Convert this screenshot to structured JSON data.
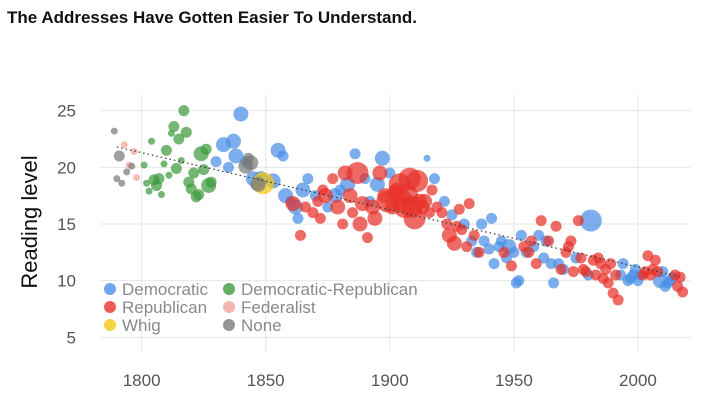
{
  "title": "The Addresses Have Gotten Easier To Understand.",
  "colors": {
    "Democratic": "#4a8fe8",
    "Democratic-Republican": "#3f9a3f",
    "Republican": "#e8322a",
    "Federalist": "#f0a39a",
    "Whig": "#f2c811",
    "None": "#7a7a7a"
  },
  "chart_data": {
    "type": "scatter",
    "title": "The Addresses Have Gotten Easier To Understand.",
    "xlabel": "",
    "ylabel": "Reading level",
    "xlim": [
      1780,
      2025
    ],
    "ylim": [
      3,
      27
    ],
    "xticks": [
      1800,
      1850,
      1900,
      1950,
      2000
    ],
    "yticks": [
      5,
      10,
      15,
      20,
      25
    ],
    "grid": true,
    "legend": "bottom-left",
    "trendline": {
      "style": "dotted",
      "from": [
        1790,
        21.8
      ],
      "to": [
        2018,
        10.3
      ]
    },
    "series": [
      {
        "name": "Democratic",
        "points": [
          [
            1830,
            20.5,
            1
          ],
          [
            1833,
            22,
            2
          ],
          [
            1835,
            20,
            1
          ],
          [
            1837,
            22.3,
            2
          ],
          [
            1838,
            21,
            2
          ],
          [
            1840,
            24.7,
            2
          ],
          [
            1842,
            20.5,
            1
          ],
          [
            1845,
            19,
            2
          ],
          [
            1846,
            18.5,
            1
          ],
          [
            1848,
            19,
            2
          ],
          [
            1853,
            18.8,
            2
          ],
          [
            1855,
            21.5,
            2
          ],
          [
            1857,
            21,
            1
          ],
          [
            1858,
            17.5,
            2
          ],
          [
            1860,
            17,
            1
          ],
          [
            1862,
            16.5,
            2
          ],
          [
            1863,
            15.5,
            1
          ],
          [
            1865,
            18,
            2
          ],
          [
            1867,
            19,
            1
          ],
          [
            1870,
            17.5,
            1
          ],
          [
            1875,
            16.5,
            1
          ],
          [
            1878,
            17.5,
            2
          ],
          [
            1880,
            18,
            1
          ],
          [
            1883,
            18.5,
            2
          ],
          [
            1886,
            21.2,
            1
          ],
          [
            1890,
            19,
            1
          ],
          [
            1892,
            17,
            1
          ],
          [
            1895,
            18.5,
            2
          ],
          [
            1897,
            20.8,
            2
          ],
          [
            1900,
            19.5,
            1
          ],
          [
            1915,
            20.8,
            0
          ],
          [
            1918,
            19,
            1
          ],
          [
            1922,
            17,
            1
          ],
          [
            1925,
            15.8,
            1
          ],
          [
            1930,
            15,
            1
          ],
          [
            1933,
            13.5,
            1
          ],
          [
            1935,
            12.5,
            1
          ],
          [
            1937,
            15,
            1
          ],
          [
            1938,
            13.5,
            1
          ],
          [
            1940,
            12.8,
            1
          ],
          [
            1941,
            15.5,
            1
          ],
          [
            1942,
            11.5,
            1
          ],
          [
            1944,
            13,
            1
          ],
          [
            1945,
            13.5,
            1
          ],
          [
            1947,
            12,
            1
          ],
          [
            1948,
            13,
            2
          ],
          [
            1950,
            12.5,
            1
          ],
          [
            1951,
            9.8,
            1
          ],
          [
            1952,
            10,
            1
          ],
          [
            1953,
            14,
            1
          ],
          [
            1955,
            12.5,
            1
          ],
          [
            1958,
            13,
            1
          ],
          [
            1960,
            14,
            1
          ],
          [
            1962,
            12,
            1
          ],
          [
            1963,
            13.5,
            1
          ],
          [
            1965,
            11.5,
            1
          ],
          [
            1966,
            9.8,
            1
          ],
          [
            1968,
            11.5,
            1
          ],
          [
            1970,
            11,
            1
          ],
          [
            1975,
            12,
            1
          ],
          [
            1980,
            10.5,
            1
          ],
          [
            1981,
            15.3,
            3
          ],
          [
            1993,
            10.5,
            1
          ],
          [
            1994,
            11.5,
            1
          ],
          [
            1996,
            10,
            1
          ],
          [
            1997,
            10.2,
            1
          ],
          [
            1998,
            10.5,
            1
          ],
          [
            1999,
            11,
            1
          ],
          [
            2000,
            10,
            1
          ],
          [
            2001,
            10.5,
            1
          ],
          [
            2009,
            10,
            2
          ],
          [
            2010,
            10.8,
            1
          ],
          [
            2011,
            9.5,
            1
          ],
          [
            2012,
            9.8,
            1
          ],
          [
            2013,
            10,
            1
          ],
          [
            2014,
            10.3,
            1
          ]
        ]
      },
      {
        "name": "Democratic-Republican",
        "points": [
          [
            1801,
            20.2,
            0
          ],
          [
            1802,
            18.6,
            0
          ],
          [
            1803,
            17.9,
            0
          ],
          [
            1804,
            22.3,
            0
          ],
          [
            1805,
            18.9,
            1
          ],
          [
            1806,
            18.4,
            1
          ],
          [
            1807,
            19,
            1
          ],
          [
            1808,
            17.6,
            0
          ],
          [
            1809,
            20.3,
            0
          ],
          [
            1810,
            21.5,
            1
          ],
          [
            1811,
            19.3,
            0
          ],
          [
            1812,
            23,
            0
          ],
          [
            1813,
            23.6,
            1
          ],
          [
            1814,
            19.9,
            1
          ],
          [
            1815,
            22.5,
            1
          ],
          [
            1816,
            20.6,
            0
          ],
          [
            1817,
            25,
            1
          ],
          [
            1818,
            23.1,
            1
          ],
          [
            1819,
            18.7,
            1
          ],
          [
            1820,
            18.1,
            1
          ],
          [
            1821,
            19.5,
            1
          ],
          [
            1822,
            17.4,
            1
          ],
          [
            1823,
            17.6,
            1
          ],
          [
            1824,
            21.2,
            2
          ],
          [
            1825,
            19.8,
            1
          ],
          [
            1826,
            21.6,
            1
          ],
          [
            1827,
            18.4,
            2
          ],
          [
            1828,
            18.7,
            1
          ]
        ]
      },
      {
        "name": "Republican",
        "points": [
          [
            1861,
            16.8,
            2
          ],
          [
            1864,
            14,
            1
          ],
          [
            1866,
            16.5,
            1
          ],
          [
            1869,
            16,
            1
          ],
          [
            1871,
            17,
            1
          ],
          [
            1872,
            15.5,
            1
          ],
          [
            1873,
            18,
            1
          ],
          [
            1874,
            17.5,
            2
          ],
          [
            1877,
            19,
            1
          ],
          [
            1879,
            16.5,
            2
          ],
          [
            1881,
            15,
            1
          ],
          [
            1882,
            19.5,
            2
          ],
          [
            1884,
            17.5,
            2
          ],
          [
            1885,
            16,
            1
          ],
          [
            1887,
            19.5,
            3
          ],
          [
            1888,
            15,
            2
          ],
          [
            1889,
            16.8,
            2
          ],
          [
            1891,
            13.8,
            1
          ],
          [
            1893,
            16.5,
            2
          ],
          [
            1894,
            15.5,
            2
          ],
          [
            1896,
            19.5,
            2
          ],
          [
            1898,
            17.5,
            2
          ],
          [
            1899,
            17,
            3
          ],
          [
            1901,
            16.5,
            2
          ],
          [
            1902,
            17.8,
            2
          ],
          [
            1903,
            18,
            2
          ],
          [
            1904,
            18.5,
            3
          ],
          [
            1905,
            17,
            3
          ],
          [
            1906,
            16.5,
            3
          ],
          [
            1907,
            17.5,
            3
          ],
          [
            1908,
            19,
            3
          ],
          [
            1909,
            16.5,
            3
          ],
          [
            1910,
            15.5,
            3
          ],
          [
            1911,
            18.8,
            3
          ],
          [
            1912,
            17,
            2
          ],
          [
            1913,
            16.5,
            2
          ],
          [
            1914,
            17,
            2
          ],
          [
            1916,
            16,
            1
          ],
          [
            1917,
            18,
            1
          ],
          [
            1919,
            16.5,
            1
          ],
          [
            1921,
            16,
            1
          ],
          [
            1923,
            15,
            1
          ],
          [
            1924,
            14,
            2
          ],
          [
            1926,
            13.3,
            2
          ],
          [
            1927,
            14.8,
            1
          ],
          [
            1928,
            16.3,
            1
          ],
          [
            1929,
            14.5,
            1
          ],
          [
            1931,
            13,
            1
          ],
          [
            1932,
            16.8,
            1
          ],
          [
            1934,
            14,
            1
          ],
          [
            1936,
            12.5,
            1
          ],
          [
            1946,
            12.5,
            1
          ],
          [
            1949,
            11.3,
            1
          ],
          [
            1954,
            13,
            1
          ],
          [
            1956,
            12.5,
            1
          ],
          [
            1957,
            13.5,
            1
          ],
          [
            1959,
            11.5,
            1
          ],
          [
            1961,
            15.3,
            1
          ],
          [
            1964,
            13.5,
            1
          ],
          [
            1967,
            14.8,
            1
          ],
          [
            1969,
            11,
            1
          ],
          [
            1971,
            12.5,
            1
          ],
          [
            1972,
            13,
            1
          ],
          [
            1973,
            13.5,
            1
          ],
          [
            1974,
            10.8,
            1
          ],
          [
            1976,
            15.3,
            1
          ],
          [
            1977,
            12,
            1
          ],
          [
            1978,
            11,
            1
          ],
          [
            1979,
            10.8,
            1
          ],
          [
            1982,
            11.8,
            1
          ],
          [
            1983,
            10.5,
            1
          ],
          [
            1984,
            12,
            1
          ],
          [
            1985,
            11.5,
            1
          ],
          [
            1986,
            10.2,
            1
          ],
          [
            1987,
            11,
            1
          ],
          [
            1988,
            9.8,
            1
          ],
          [
            1989,
            11.5,
            1
          ],
          [
            1990,
            8.9,
            1
          ],
          [
            1991,
            10.5,
            1
          ],
          [
            1992,
            8.3,
            1
          ],
          [
            2002,
            10.5,
            1
          ],
          [
            2003,
            10.8,
            1
          ],
          [
            2004,
            12.2,
            1
          ],
          [
            2005,
            10.5,
            1
          ],
          [
            2006,
            11,
            1
          ],
          [
            2007,
            11.8,
            1
          ],
          [
            2008,
            10.8,
            1
          ],
          [
            2015,
            10.5,
            1
          ],
          [
            2016,
            9.5,
            1
          ],
          [
            2017,
            10.3,
            1
          ],
          [
            2018,
            9,
            1
          ]
        ]
      },
      {
        "name": "Federalist",
        "points": [
          [
            1793,
            22,
            0
          ],
          [
            1795,
            20.2,
            0
          ],
          [
            1797,
            21.4,
            0
          ],
          [
            1798,
            19.1,
            0
          ]
        ]
      },
      {
        "name": "Whig",
        "points": [
          [
            1849,
            18.6,
            3
          ]
        ]
      },
      {
        "name": "None",
        "points": [
          [
            1789,
            23.2,
            0
          ],
          [
            1790,
            19,
            0
          ],
          [
            1791,
            21,
            1
          ],
          [
            1792,
            18.6,
            0
          ],
          [
            1794,
            19.6,
            0
          ],
          [
            1796,
            20.1,
            0
          ],
          [
            1842,
            20.1,
            2
          ],
          [
            1843,
            20.8,
            1
          ],
          [
            1844,
            20.4,
            2
          ],
          [
            1847,
            18.5,
            2
          ]
        ]
      }
    ]
  }
}
